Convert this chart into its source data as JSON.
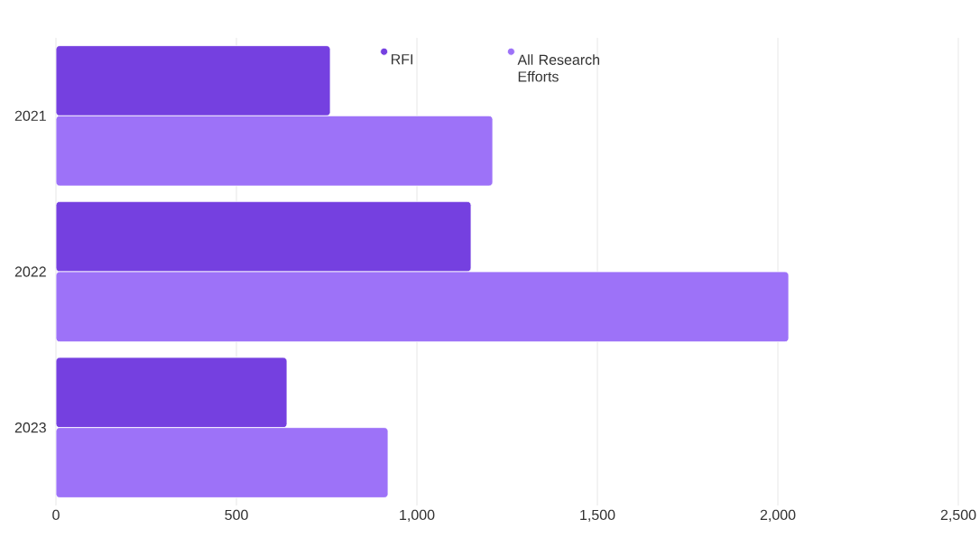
{
  "chart_data": {
    "type": "bar",
    "orientation": "horizontal",
    "categories": [
      "2021",
      "2022",
      "2023"
    ],
    "series": [
      {
        "name": "RFI",
        "color": "#7540e0",
        "values": [
          760,
          1150,
          640
        ]
      },
      {
        "name": "All Research Efforts",
        "color": "#9d72f8",
        "values": [
          1210,
          2030,
          920
        ]
      }
    ],
    "xlim": [
      0,
      2500
    ],
    "xticks": [
      {
        "value": 0,
        "label": "0"
      },
      {
        "value": 500,
        "label": "500"
      },
      {
        "value": 1000,
        "label": "1,000"
      },
      {
        "value": 1500,
        "label": "1,500"
      },
      {
        "value": 2000,
        "label": "2,000"
      },
      {
        "value": 2500,
        "label": "2,500"
      }
    ],
    "grid": "x",
    "legend": "top"
  }
}
